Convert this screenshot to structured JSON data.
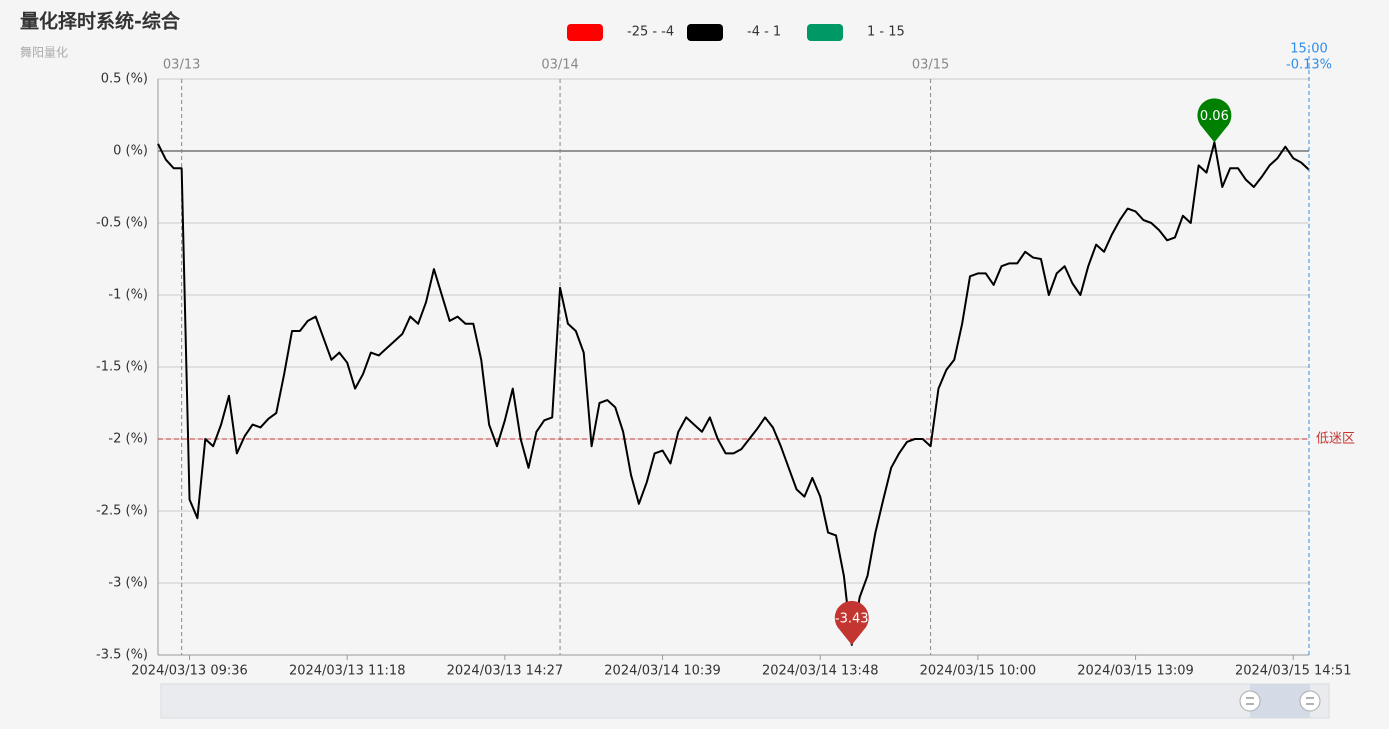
{
  "chart_data": {
    "type": "line",
    "title": "量化择时系统-综合",
    "subtitle": "舞阳量化",
    "categories": [
      null,
      null,
      null,
      null,
      "2024/03/13 09:36",
      null,
      null,
      null,
      null,
      null,
      null,
      null,
      null,
      null,
      null,
      null,
      null,
      null,
      null,
      null,
      null,
      null,
      null,
      null,
      "2024/03/13 11:18",
      null,
      null,
      null,
      null,
      null,
      null,
      null,
      null,
      null,
      null,
      null,
      null,
      null,
      null,
      null,
      null,
      null,
      null,
      null,
      "2024/03/13 14:27",
      null,
      null,
      null,
      null,
      null,
      null,
      null,
      null,
      null,
      null,
      null,
      null,
      null,
      null,
      null,
      null,
      null,
      null,
      null,
      "2024/03/14 10:39",
      null,
      null,
      null,
      null,
      null,
      null,
      null,
      null,
      null,
      null,
      null,
      null,
      null,
      null,
      null,
      null,
      null,
      null,
      null,
      "2024/03/14 13:48",
      null,
      null,
      null,
      null,
      null,
      null,
      null,
      null,
      null,
      null,
      null,
      null,
      null,
      null,
      null,
      null,
      null,
      null,
      null,
      "2024/03/15 10:00",
      null,
      null,
      null,
      null,
      null,
      null,
      null,
      null,
      null,
      null,
      null,
      null,
      null,
      null,
      null,
      null,
      null,
      null,
      null,
      "2024/03/15 13:09",
      null,
      null,
      null,
      null,
      null,
      null,
      null,
      null,
      null,
      null,
      null,
      null,
      null,
      null,
      null,
      null,
      null,
      null,
      null,
      "2024/03/15 14:51",
      null,
      null
    ],
    "values": [
      0.05,
      -0.06,
      -0.12,
      -0.12,
      -2.42,
      -2.55,
      -2.0,
      -2.05,
      -1.9,
      -1.7,
      -2.1,
      -1.98,
      -1.9,
      -1.92,
      -1.86,
      -1.82,
      -1.55,
      -1.25,
      -1.25,
      -1.18,
      -1.15,
      -1.3,
      -1.45,
      -1.4,
      -1.47,
      -1.65,
      -1.55,
      -1.4,
      -1.42,
      -1.37,
      -1.32,
      -1.27,
      -1.15,
      -1.2,
      -1.05,
      -0.82,
      -1.0,
      -1.18,
      -1.15,
      -1.2,
      -1.2,
      -1.45,
      -1.9,
      -2.05,
      -1.87,
      -1.65,
      -2.0,
      -2.2,
      -1.95,
      -1.87,
      -1.85,
      -0.95,
      -1.2,
      -1.25,
      -1.4,
      -2.05,
      -1.75,
      -1.73,
      -1.78,
      -1.95,
      -2.25,
      -2.45,
      -2.3,
      -2.1,
      -2.08,
      -2.17,
      -1.95,
      -1.85,
      -1.9,
      -1.95,
      -1.85,
      -2.0,
      -2.1,
      -2.1,
      -2.07,
      -2.0,
      -1.93,
      -1.85,
      -1.92,
      -2.05,
      -2.2,
      -2.35,
      -2.4,
      -2.27,
      -2.4,
      -2.65,
      -2.67,
      -2.95,
      -3.43,
      -3.1,
      -2.95,
      -2.65,
      -2.42,
      -2.2,
      -2.1,
      -2.02,
      -2.0,
      -2.0,
      -2.05,
      -1.65,
      -1.52,
      -1.45,
      -1.2,
      -0.87,
      -0.85,
      -0.85,
      -0.93,
      -0.8,
      -0.78,
      -0.78,
      -0.7,
      -0.74,
      -0.75,
      -1.0,
      -0.85,
      -0.8,
      -0.92,
      -1.0,
      -0.8,
      -0.65,
      -0.7,
      -0.58,
      -0.48,
      -0.4,
      -0.42,
      -0.48,
      -0.5,
      -0.55,
      -0.62,
      -0.6,
      -0.45,
      -0.5,
      -0.1,
      -0.15,
      0.06,
      -0.25,
      -0.12,
      -0.12,
      -0.2,
      -0.25,
      -0.18,
      -0.1,
      -0.05,
      0.03,
      -0.05,
      -0.08,
      -0.13
    ],
    "color": "#000000",
    "ylim": [
      -3.5,
      0.5
    ],
    "yticks": [
      {
        "value": -3.5,
        "label": "-3.5 (%)"
      },
      {
        "value": -3,
        "label": "-3 (%)"
      },
      {
        "value": -2.5,
        "label": "-2.5 (%)"
      },
      {
        "value": -2,
        "label": "-2 (%)"
      },
      {
        "value": -1.5,
        "label": "-1.5 (%)"
      },
      {
        "value": -1,
        "label": "-1 (%)"
      },
      {
        "value": -0.5,
        "label": "-0.5 (%)"
      },
      {
        "value": 0,
        "label": "0 (%)"
      },
      {
        "value": 0.5,
        "label": "0.5 (%)"
      }
    ],
    "grid": true,
    "visual_map": [
      {
        "label": "-25 - -4",
        "color": "#ff0000"
      },
      {
        "label": "-4 - 1",
        "color": "#000000"
      },
      {
        "label": "1 - 15",
        "color": "#009966"
      }
    ],
    "mark_line": {
      "value": -2,
      "label": "低迷区",
      "color": "#c23531"
    },
    "mark_points": [
      {
        "index": 134,
        "value": 0.06,
        "color": "#008000"
      },
      {
        "index": 88,
        "value": -3.43,
        "color": "#c23531"
      }
    ],
    "day_lines": [
      {
        "index": 3,
        "label": "03/13"
      },
      {
        "index": 51,
        "label": "03/14"
      },
      {
        "index": 98,
        "label": "03/15"
      }
    ],
    "pointer": {
      "index": 146,
      "time": "15:00",
      "value_label": "-0.13%",
      "color": "#2f8ee8"
    }
  }
}
